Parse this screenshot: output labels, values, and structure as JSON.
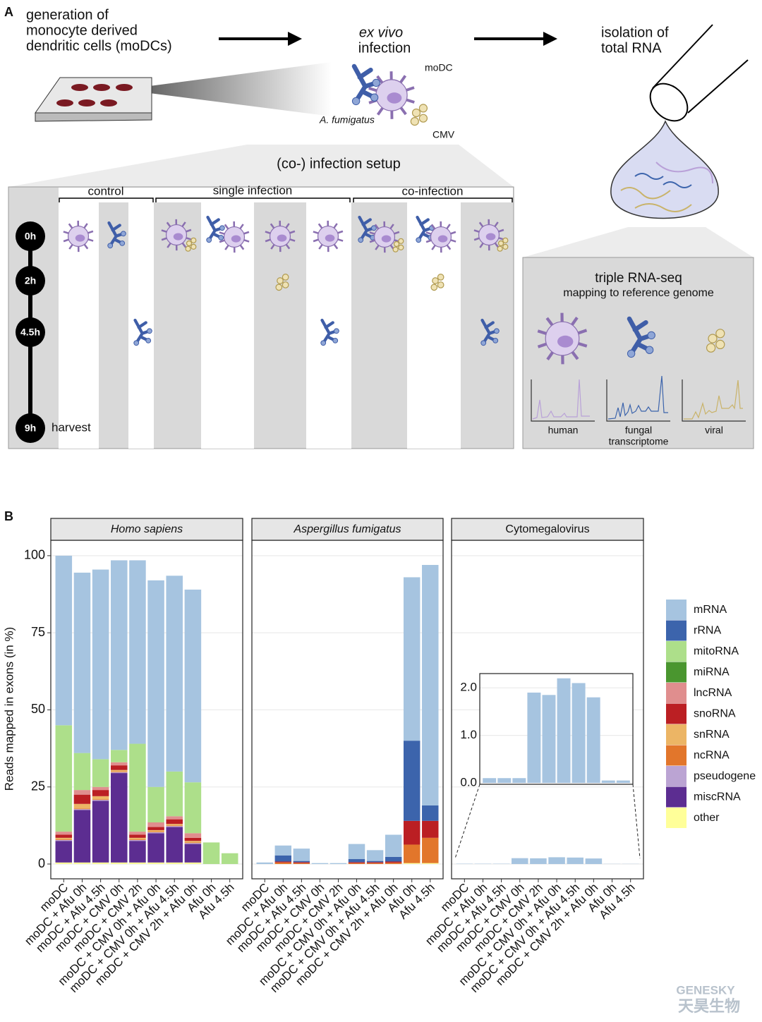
{
  "panel_a": {
    "label": "A",
    "steps": {
      "generation": [
        "generation of",
        "monocyte derived",
        "dendritic cells (moDCs)"
      ],
      "infection": [
        "ex vivo",
        "infection"
      ],
      "isolation": [
        "isolation of",
        "total RNA"
      ]
    },
    "cell_labels": {
      "modc": "moDC",
      "afu": "A. fumigatus",
      "cmv": "CMV"
    },
    "setup": {
      "title": "(co-) infection setup",
      "groups": [
        "control",
        "single infection",
        "co-infection"
      ],
      "timepoints": [
        "0h",
        "2h",
        "4.5h",
        "9h"
      ],
      "harvest": "harvest"
    },
    "sequencing": {
      "title": "triple RNA-seq",
      "subtitle": "mapping to reference genome",
      "transcriptomes": [
        [
          "human"
        ],
        [
          "fungal",
          "transcriptome"
        ],
        [
          "viral"
        ]
      ]
    }
  },
  "panel_b_label": "B",
  "chart_data": {
    "type": "bar",
    "stacked": true,
    "ylabel": "Reads mapped in exons (in %)",
    "ylim": [
      -4.8,
      105
    ],
    "yticks": [
      0,
      25,
      50,
      75,
      100
    ],
    "grid": true,
    "legend": "right",
    "categories": [
      "moDC",
      "moDC + Afu 0h",
      "moDC + Afu 4.5h",
      "moDC + CMV 0h",
      "moDC + CMV 2h",
      "moDC + CMV 0h + Afu 0h",
      "moDC + CMV 0h + Afu 4.5h",
      "moDC + CMV 2h + Afu 0h",
      "Afu 0h",
      "Afu 4.5h"
    ],
    "series": [
      {
        "name": "mRNA",
        "color": "#a6c4e0"
      },
      {
        "name": "rRNA",
        "color": "#3c64ac"
      },
      {
        "name": "mitoRNA",
        "color": "#addf8a"
      },
      {
        "name": "miRNA",
        "color": "#4a962f"
      },
      {
        "name": "lncRNA",
        "color": "#e08e8e"
      },
      {
        "name": "snoRNA",
        "color": "#bb1f23"
      },
      {
        "name": "snRNA",
        "color": "#ecb565"
      },
      {
        "name": "ncRNA",
        "color": "#e2762b"
      },
      {
        "name": "pseudogene",
        "color": "#bba4d3"
      },
      {
        "name": "miscRNA",
        "color": "#5c2d91"
      },
      {
        "name": "other",
        "color": "#ffff99"
      }
    ],
    "facets": [
      {
        "title": "Homo sapiens",
        "italic": true,
        "values": [
          [
            55,
            58.5,
            61.5,
            61.5,
            59.5,
            67,
            63.5,
            62.5,
            0,
            0
          ],
          [
            0,
            0,
            0,
            0,
            0,
            0,
            0,
            0,
            0,
            0
          ],
          [
            34.5,
            12,
            9,
            4,
            28.5,
            11.5,
            14.5,
            16.5,
            7,
            3.5
          ],
          [
            0,
            0,
            0,
            0,
            0,
            0,
            0,
            0,
            0,
            0
          ],
          [
            1,
            1.5,
            1,
            1,
            1,
            1.5,
            1,
            1.5,
            0,
            0
          ],
          [
            1,
            3,
            2,
            1.5,
            1,
            1,
            1.5,
            1,
            0,
            0
          ],
          [
            0.5,
            1.5,
            1,
            0.5,
            0.5,
            0.5,
            0.5,
            0.5,
            0,
            0
          ],
          [
            0.2,
            0.2,
            0.2,
            0.2,
            0.2,
            0.2,
            0.2,
            0.2,
            0,
            0
          ],
          [
            0.3,
            0.3,
            0.3,
            0.3,
            0.3,
            0.3,
            0.3,
            0.3,
            0,
            0
          ],
          [
            7,
            17,
            20,
            29,
            7,
            9.5,
            11.5,
            6,
            0,
            0
          ],
          [
            0.5,
            0.5,
            0.5,
            0.5,
            0.5,
            0.5,
            0.5,
            0.5,
            0,
            0
          ]
        ]
      },
      {
        "title": "Aspergillus fumigatus",
        "italic": true,
        "values": [
          [
            0.5,
            3.2,
            4,
            0.3,
            0.3,
            4.9,
            3.5,
            7.2,
            53,
            78
          ],
          [
            0,
            2,
            0.4,
            0,
            0,
            1,
            0.4,
            1.5,
            26,
            5
          ],
          [
            0,
            0,
            0,
            0,
            0,
            0,
            0,
            0,
            0,
            0
          ],
          [
            0,
            0,
            0,
            0,
            0,
            0,
            0,
            0,
            0,
            0
          ],
          [
            0,
            0,
            0,
            0,
            0,
            0,
            0,
            0,
            0,
            0
          ],
          [
            0,
            0.3,
            0.3,
            0,
            0,
            0.3,
            0.3,
            0.4,
            7.7,
            5.5
          ],
          [
            0,
            0,
            0,
            0,
            0,
            0,
            0,
            0,
            0,
            0
          ],
          [
            0,
            0.5,
            0.3,
            0,
            0,
            0.3,
            0.3,
            0.4,
            6,
            8.2
          ],
          [
            0,
            0,
            0,
            0,
            0,
            0,
            0,
            0,
            0,
            0
          ],
          [
            0,
            0,
            0,
            0,
            0,
            0,
            0,
            0,
            0,
            0
          ],
          [
            0,
            0,
            0,
            0,
            0,
            0,
            0,
            0,
            0.3,
            0.3
          ]
        ]
      },
      {
        "title": "Cytomegalovirus",
        "italic": false,
        "values": [
          [
            0.1,
            0.1,
            0.1,
            1.9,
            1.85,
            2.2,
            2.1,
            1.8,
            0.05,
            0.05
          ],
          [
            0,
            0,
            0,
            0,
            0,
            0,
            0,
            0,
            0,
            0
          ],
          [
            0,
            0,
            0,
            0,
            0,
            0,
            0,
            0,
            0,
            0
          ],
          [
            0,
            0,
            0,
            0,
            0,
            0,
            0,
            0,
            0,
            0
          ],
          [
            0,
            0,
            0,
            0,
            0,
            0,
            0,
            0,
            0,
            0
          ],
          [
            0,
            0,
            0,
            0,
            0,
            0,
            0,
            0,
            0,
            0
          ],
          [
            0,
            0,
            0,
            0,
            0,
            0,
            0,
            0,
            0,
            0
          ],
          [
            0,
            0,
            0,
            0,
            0,
            0,
            0,
            0,
            0,
            0
          ],
          [
            0,
            0,
            0,
            0,
            0,
            0,
            0,
            0,
            0,
            0
          ],
          [
            0,
            0,
            0,
            0,
            0,
            0,
            0,
            0,
            0,
            0
          ],
          [
            0,
            0,
            0,
            0,
            0,
            0,
            0,
            0,
            0,
            0
          ]
        ],
        "inset": {
          "ylim": [
            -0.03,
            2.3
          ],
          "yticks": [
            {
              "value": 0,
              "label": "0.0"
            },
            {
              "value": 1,
              "label": "1.0"
            },
            {
              "value": 2,
              "label": "2.0"
            }
          ]
        }
      }
    ]
  },
  "watermark": [
    "GENESKY",
    "天昊生物"
  ]
}
